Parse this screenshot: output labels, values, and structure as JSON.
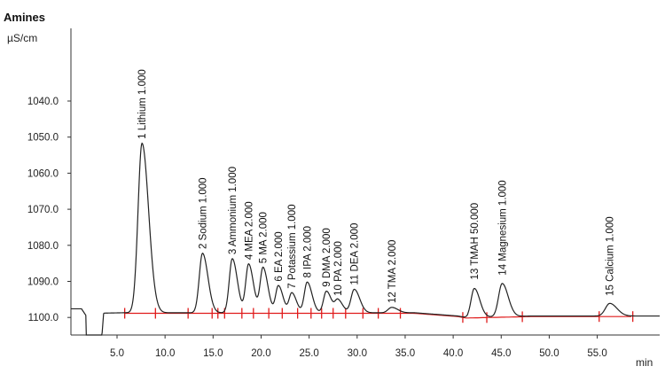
{
  "chart_data": {
    "type": "line",
    "title": "Amines",
    "ylabel": "µS/cm",
    "xlabel": "min",
    "xlim": [
      0,
      61.5
    ],
    "ylim": [
      1103,
      1025
    ],
    "y_axis_inverted": true,
    "yticks": [
      "1040.0",
      "1050.0",
      "1060.0",
      "1070.0",
      "1080.0",
      "1090.0",
      "1100.0"
    ],
    "xticks": [
      "5.0",
      "10.0",
      "15.0",
      "20.0",
      "25.0",
      "30.0",
      "35.0",
      "40.0",
      "45.0",
      "50.0",
      "55.0"
    ],
    "baseline": 1099.0,
    "trace_color": "#222222",
    "baseline_color": "#e01b1b",
    "peaks": [
      {
        "label": "1 Lithium 1.000",
        "x": 7.6,
        "y": 1052.0,
        "w": 0.55
      },
      {
        "label": "2 Sodium 1.000",
        "x": 13.9,
        "y": 1082.5,
        "w": 0.45
      },
      {
        "label": "3 Ammonium 1.000",
        "x": 17.0,
        "y": 1084.0,
        "w": 0.42
      },
      {
        "label": "4 MEA 2.000",
        "x": 18.7,
        "y": 1085.5,
        "w": 0.4
      },
      {
        "label": "5 MA 2.000",
        "x": 20.2,
        "y": 1086.5,
        "w": 0.4
      },
      {
        "label": "6 EA 2.000",
        "x": 21.8,
        "y": 1091.5,
        "w": 0.38
      },
      {
        "label": "7 Potassium 1.000",
        "x": 23.2,
        "y": 1093.5,
        "w": 0.38
      },
      {
        "label": "8 IPA 2.000",
        "x": 24.8,
        "y": 1090.5,
        "w": 0.4
      },
      {
        "label": "9 DMA 2.000",
        "x": 26.8,
        "y": 1093.0,
        "w": 0.4
      },
      {
        "label": "10 PA 2.000",
        "x": 28.0,
        "y": 1095.5,
        "w": 0.4
      },
      {
        "label": "11 DEA 2.000",
        "x": 29.7,
        "y": 1092.5,
        "w": 0.45
      },
      {
        "label": "12 TMA 2.000",
        "x": 33.6,
        "y": 1097.5,
        "w": 0.5
      },
      {
        "label": "13 TMAH 50.000",
        "x": 42.2,
        "y": 1091.0,
        "w": 0.45
      },
      {
        "label": "14 Magnesium 1.000",
        "x": 45.1,
        "y": 1089.8,
        "w": 0.5
      },
      {
        "label": "15 Calcium 1.000",
        "x": 56.3,
        "y": 1095.5,
        "w": 0.6
      }
    ],
    "integration_marks": [
      5.8,
      9.0,
      12.4,
      14.9,
      15.5,
      16.2,
      18.0,
      19.2,
      20.8,
      22.2,
      23.8,
      25.2,
      26.3,
      27.5,
      28.8,
      30.6,
      32.2,
      34.5,
      41.0,
      43.5,
      47.2,
      55.2,
      58.7
    ]
  }
}
